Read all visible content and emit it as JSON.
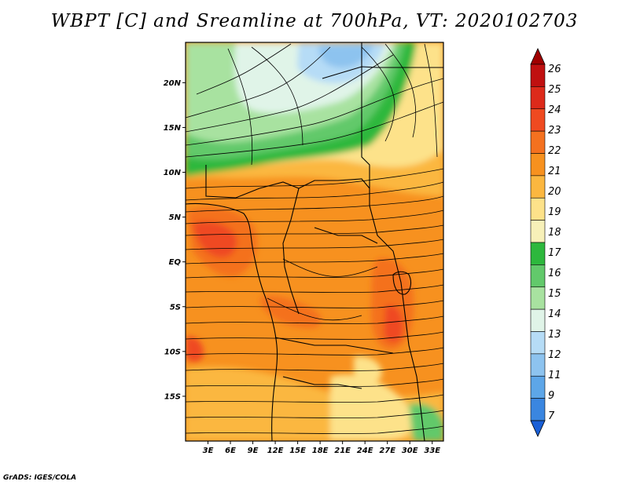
{
  "title": "WBPT [C] and Sreamline at 700hPa, VT: 2020102703",
  "credit": "GrADS: IGES/COLA",
  "map": {
    "region": "Central Africa",
    "lat_labels": [
      "20N",
      "15N",
      "10N",
      "5N",
      "EQ",
      "5S",
      "10S",
      "15S"
    ],
    "lat_values": [
      20,
      15,
      10,
      5,
      0,
      -5,
      -10,
      -15
    ],
    "lon_labels": [
      "3E",
      "6E",
      "9E",
      "12E",
      "15E",
      "18E",
      "21E",
      "24E",
      "27E",
      "30E",
      "33E"
    ],
    "lon_values": [
      3,
      6,
      9,
      12,
      15,
      18,
      21,
      24,
      27,
      30,
      33
    ],
    "lon_range": [
      0,
      34.5
    ],
    "lat_range": [
      -20,
      24.5
    ]
  },
  "colorbar": {
    "levels": [
      "26",
      "25",
      "24",
      "23",
      "22",
      "21",
      "20",
      "19",
      "18",
      "17",
      "16",
      "15",
      "14",
      "13",
      "12",
      "11",
      "9",
      "7"
    ],
    "colors": [
      "#a00000",
      "#c01010",
      "#dd2a1a",
      "#ef4a20",
      "#f4711f",
      "#f7911f",
      "#fbb740",
      "#fde28a",
      "#f7f0b8",
      "#2db83d",
      "#62c96b",
      "#a8e2a0",
      "#e0f4e8",
      "#b6dcf6",
      "#8dc3ef",
      "#5da6e8",
      "#3a86e0",
      "#1a5fd6"
    ]
  }
}
